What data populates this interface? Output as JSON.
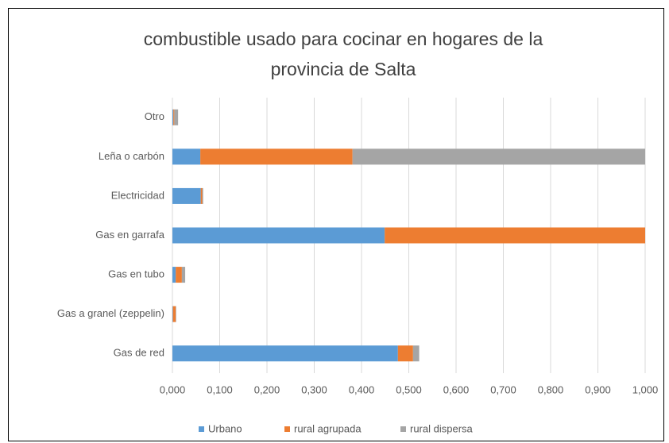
{
  "chart_data": {
    "type": "stacked-barh",
    "title": "combustible usado para cocinar en hogares de la provincia de Salta",
    "categories": [
      "Otro",
      "Leña o carbón",
      "Electricidad",
      "Gas en garrafa",
      "Gas en tubo",
      "Gas a granel (zeppelin)",
      "Gas de red"
    ],
    "series": [
      {
        "name": "Urbano",
        "color": "#5b9bd5",
        "values": [
          0.002,
          0.059,
          0.06,
          0.449,
          0.007,
          0.001,
          0.477
        ]
      },
      {
        "name": "rural agrupada",
        "color": "#ed7d31",
        "values": [
          0.002,
          0.322,
          0.003,
          0.551,
          0.013,
          0.006,
          0.032
        ]
      },
      {
        "name": "rural dispersa",
        "color": "#a5a5a5",
        "values": [
          0.008,
          0.619,
          0.002,
          0,
          0.007,
          0.001,
          0.013
        ]
      }
    ],
    "xlim": [
      0,
      1
    ],
    "xticks": [
      {
        "value": 0,
        "label": "0,000"
      },
      {
        "value": 0.1,
        "label": "0,100"
      },
      {
        "value": 0.2,
        "label": "0,200"
      },
      {
        "value": 0.3,
        "label": "0,300"
      },
      {
        "value": 0.4,
        "label": "0,400"
      },
      {
        "value": 0.5,
        "label": "0,500"
      },
      {
        "value": 0.6,
        "label": "0,600"
      },
      {
        "value": 0.7,
        "label": "0,700"
      },
      {
        "value": 0.8,
        "label": "0,800"
      },
      {
        "value": 0.9,
        "label": "0,900"
      },
      {
        "value": 1,
        "label": "1,000"
      }
    ],
    "grid": true,
    "legend": "bottom"
  }
}
